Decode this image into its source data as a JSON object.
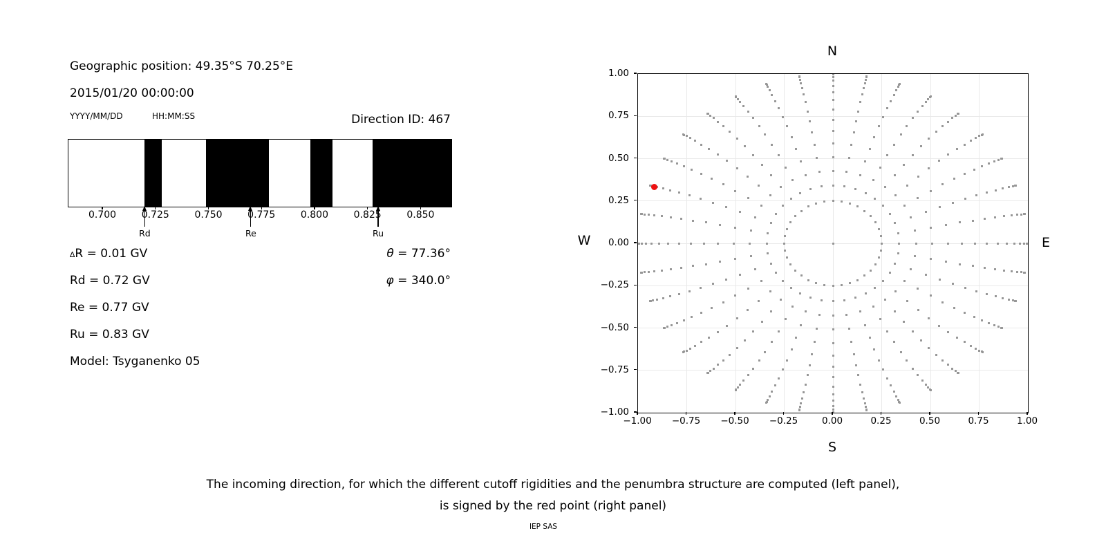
{
  "header": {
    "geo_position": "Geographic position: 49.35°S 70.25°E",
    "datetime": "2015/01/20 00:00:00",
    "date_format": "YYYY/MM/DD",
    "time_format": "HH:MM:SS",
    "direction_id": "Direction ID: 467"
  },
  "info": {
    "delta_symbol": "∆",
    "delta_rest": "R = 0.01 GV",
    "rd": "Rd = 0.72 GV",
    "re": "Re = 0.77 GV",
    "ru": "Ru = 0.83 GV",
    "model": "Model: Tsyganenko 05",
    "theta_symbol": "θ",
    "theta_rest": " = 77.36°",
    "phi_symbol": "φ",
    "phi_rest": " = 340.0°"
  },
  "caption": {
    "line1": "The incoming direction, for which the different cutoff rigidities and the penumbra structure are computed (left panel),",
    "line2": "is signed by the red point (right panel)",
    "credit": "IEP SAS"
  },
  "chart_data": [
    {
      "type": "area",
      "name": "penumbra-structure",
      "x_unit": "GV",
      "x_range": [
        0.6837,
        0.8642
      ],
      "xticks": [
        0.7,
        0.725,
        0.75,
        0.775,
        0.8,
        0.825,
        0.85
      ],
      "xtick_labels": [
        "0.700",
        "0.725",
        "0.750",
        "0.775",
        "0.800",
        "0.825",
        "0.850"
      ],
      "black_segments": [
        [
          0.7196,
          0.7277
        ],
        [
          0.7484,
          0.7782
        ],
        [
          0.7978,
          0.8081
        ],
        [
          0.8271,
          0.8642
        ]
      ],
      "white_color": "#ffffff",
      "black_color": "#000000",
      "markers": [
        {
          "label": "Rd",
          "value": 0.72
        },
        {
          "label": "Re",
          "value": 0.77
        },
        {
          "label": "Ru",
          "value": 0.83
        }
      ]
    },
    {
      "type": "scatter",
      "name": "incoming-directions",
      "xlim": [
        -1,
        1
      ],
      "ylim": [
        -1,
        1
      ],
      "grid": true,
      "xtick_values": [
        -1,
        -0.75,
        -0.5,
        -0.25,
        0,
        0.25,
        0.5,
        0.75,
        1
      ],
      "xtick_labels": [
        "−1.00",
        "−0.75",
        "−0.50",
        "−0.25",
        "0.00",
        "0.25",
        "0.50",
        "0.75",
        "1.00"
      ],
      "ytick_values": [
        -1,
        -0.75,
        -0.5,
        -0.25,
        0,
        0.25,
        0.5,
        0.75,
        1
      ],
      "ytick_labels": [
        "−1.00",
        "−0.75",
        "−0.50",
        "−0.25",
        "0.00",
        "0.25",
        "0.50",
        "0.75",
        "1.00"
      ],
      "compass": {
        "top": "N",
        "right": "E",
        "bottom": "S",
        "left": "W"
      },
      "azimuths_deg": {
        "start": 0,
        "step": 10,
        "count": 36
      },
      "ring_radius": 0.25,
      "spoke_radii": [
        0.25,
        0.34,
        0.427,
        0.51,
        0.589,
        0.662,
        0.73,
        0.79,
        0.845,
        0.891,
        0.93,
        0.96,
        0.982,
        0.996,
        1.0
      ],
      "has_center_point": true,
      "bend_deg_amplitude": 2,
      "dot_color": "#969696",
      "red_point": {
        "x": -0.917,
        "y": 0.334,
        "azimuth_deg": 160,
        "r": 0.976,
        "color": "#ee1111"
      }
    }
  ]
}
